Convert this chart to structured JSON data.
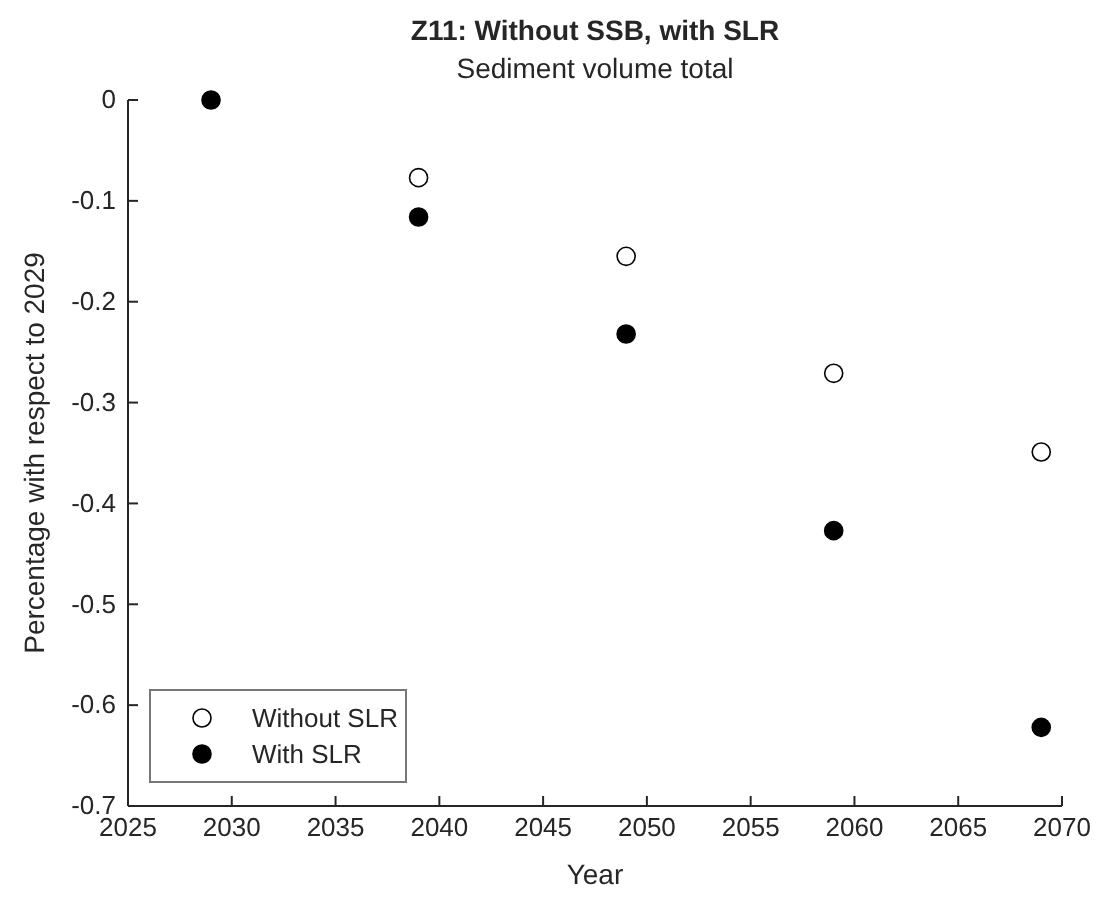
{
  "chart_data": {
    "type": "scatter",
    "title": "Z11: Without SSB, with SLR",
    "subtitle": "Sediment volume total",
    "xlabel": "Year",
    "ylabel": "Percentage with respect to 2029",
    "x": [
      2029,
      2039,
      2049,
      2059,
      2069
    ],
    "series": [
      {
        "name": "Without SLR",
        "color": "#ffffff",
        "values": [
          null,
          -0.077,
          -0.155,
          -0.271,
          -0.349
        ]
      },
      {
        "name": "With SLR",
        "color": "#000000",
        "values": [
          0,
          -0.116,
          -0.232,
          -0.427,
          -0.622
        ]
      }
    ],
    "xlim": [
      2025,
      2070
    ],
    "xticks": [
      2025,
      2030,
      2035,
      2040,
      2045,
      2050,
      2055,
      2060,
      2065,
      2070
    ],
    "ylim": [
      -0.7,
      0
    ],
    "yticks": [
      -0.7,
      -0.6,
      -0.5,
      -0.4,
      -0.3,
      -0.2,
      -0.1,
      0
    ],
    "legend": "bottom left",
    "marker": "circle",
    "grid": false
  }
}
